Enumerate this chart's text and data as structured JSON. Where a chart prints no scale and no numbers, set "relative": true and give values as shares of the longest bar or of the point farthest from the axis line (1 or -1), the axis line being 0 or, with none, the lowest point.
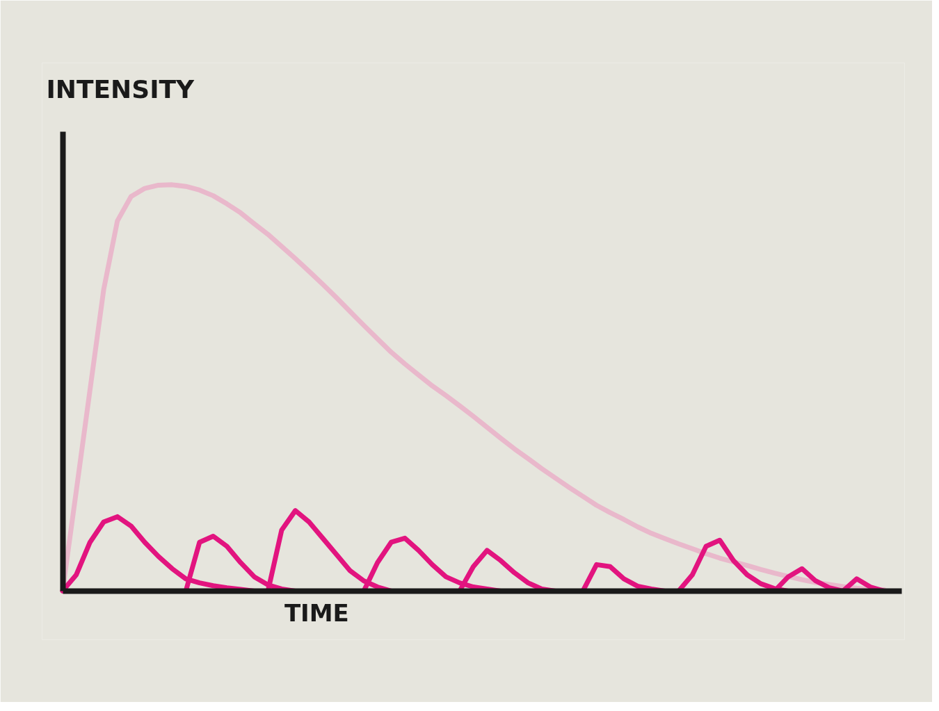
{
  "chart_data": {
    "type": "line",
    "relative": true,
    "grid": false,
    "xlabel": "TIME",
    "ylabel": "INTENSITY",
    "categories": [
      null,
      null,
      null,
      null,
      null,
      null,
      null,
      null,
      null,
      null,
      null,
      null,
      null,
      null,
      null,
      null,
      null,
      null,
      null,
      null,
      null,
      null,
      null,
      null,
      null,
      null,
      null,
      null,
      null,
      null,
      null,
      null,
      null,
      null,
      null,
      null,
      null,
      null,
      null,
      null,
      null,
      null,
      null,
      null,
      null,
      null,
      null,
      null,
      null,
      null,
      null,
      null,
      null,
      null,
      null,
      null,
      null,
      null,
      null,
      null,
      null
    ],
    "series": [
      {
        "color": "#e9b8cb",
        "values": [
          0,
          0.247,
          0.495,
          0.742,
          0.911,
          0.971,
          0.991,
          0.999,
          1.0,
          0.996,
          0.987,
          0.973,
          0.953,
          0.931,
          0.904,
          0.878,
          0.848,
          0.818,
          0.787,
          0.755,
          0.722,
          0.688,
          0.654,
          0.621,
          0.588,
          0.559,
          0.532,
          0.505,
          0.481,
          0.456,
          0.43,
          0.403,
          0.376,
          0.35,
          0.326,
          0.301,
          0.278,
          0.255,
          0.233,
          0.211,
          0.193,
          0.176,
          0.158,
          0.142,
          0.129,
          0.116,
          0.104,
          0.092,
          0.081,
          0.072,
          0.063,
          0.053,
          0.044,
          0.036,
          0.028,
          0.021,
          0.016,
          0.011,
          0.007,
          0.004,
          0.003
        ]
      },
      {
        "color": "#e2147f",
        "values": [
          0,
          0.04,
          0.12,
          0.17,
          0.183,
          0.16,
          0.12,
          0.085,
          0.055,
          0.03,
          0.02,
          0.013,
          0.008,
          0.004,
          0,
          null,
          null,
          null,
          null,
          null,
          null,
          null,
          null,
          null,
          null,
          null,
          null,
          null,
          null,
          null,
          null,
          null,
          null,
          null,
          null,
          null,
          null,
          null,
          null,
          null,
          null,
          null,
          null,
          null,
          null,
          null,
          null,
          null,
          null,
          null,
          null,
          null,
          null,
          null,
          null,
          null,
          null,
          null,
          null,
          null,
          null
        ]
      },
      {
        "color": "#e2147f",
        "values": [
          null,
          null,
          null,
          null,
          null,
          null,
          null,
          null,
          null,
          0,
          0.12,
          0.135,
          0.11,
          0.07,
          0.035,
          0.015,
          0.005,
          0,
          null,
          null,
          null,
          null,
          null,
          null,
          null,
          null,
          null,
          null,
          null,
          null,
          null,
          null,
          null,
          null,
          null,
          null,
          null,
          null,
          null,
          null,
          null,
          null,
          null,
          null,
          null,
          null,
          null,
          null,
          null,
          null,
          null,
          null,
          null,
          null,
          null,
          null,
          null,
          null,
          null,
          null,
          null
        ]
      },
      {
        "color": "#e2147f",
        "values": [
          null,
          null,
          null,
          null,
          null,
          null,
          null,
          null,
          null,
          null,
          null,
          null,
          null,
          null,
          null,
          0,
          0.15,
          0.198,
          0.17,
          0.13,
          0.09,
          0.05,
          0.025,
          0.01,
          0,
          null,
          null,
          null,
          null,
          null,
          null,
          null,
          null,
          null,
          null,
          null,
          null,
          null,
          null,
          null,
          null,
          null,
          null,
          null,
          null,
          null,
          null,
          null,
          null,
          null,
          null,
          null,
          null,
          null,
          null,
          null,
          null,
          null,
          null,
          null,
          null
        ]
      },
      {
        "color": "#e2147f",
        "values": [
          null,
          null,
          null,
          null,
          null,
          null,
          null,
          null,
          null,
          null,
          null,
          null,
          null,
          null,
          null,
          null,
          null,
          null,
          null,
          null,
          null,
          null,
          0,
          0.07,
          0.12,
          0.13,
          0.1,
          0.065,
          0.035,
          0.02,
          0.01,
          0.005,
          0,
          null,
          null,
          null,
          null,
          null,
          null,
          null,
          null,
          null,
          null,
          null,
          null,
          null,
          null,
          null,
          null,
          null,
          null,
          null,
          null,
          null,
          null,
          null,
          null,
          null,
          null,
          null,
          null
        ]
      },
      {
        "color": "#e2147f",
        "values": [
          null,
          null,
          null,
          null,
          null,
          null,
          null,
          null,
          null,
          null,
          null,
          null,
          null,
          null,
          null,
          null,
          null,
          null,
          null,
          null,
          null,
          null,
          null,
          null,
          null,
          null,
          null,
          null,
          null,
          0,
          0.06,
          0.1,
          0.075,
          0.045,
          0.02,
          0.005,
          0,
          null,
          null,
          null,
          null,
          null,
          null,
          null,
          null,
          null,
          null,
          null,
          null,
          null,
          null,
          null,
          null,
          null,
          null,
          null,
          null,
          null,
          null,
          null,
          null
        ]
      },
      {
        "color": "#e2147f",
        "values": [
          null,
          null,
          null,
          null,
          null,
          null,
          null,
          null,
          null,
          null,
          null,
          null,
          null,
          null,
          null,
          null,
          null,
          null,
          null,
          null,
          null,
          null,
          null,
          null,
          null,
          null,
          null,
          null,
          null,
          null,
          null,
          null,
          null,
          null,
          null,
          null,
          null,
          null,
          0,
          0.065,
          0.06,
          0.03,
          0.012,
          0.005,
          0,
          null,
          null,
          null,
          null,
          null,
          null,
          null,
          null,
          null,
          null,
          null,
          null,
          null,
          null,
          null,
          null
        ]
      },
      {
        "color": "#e2147f",
        "values": [
          null,
          null,
          null,
          null,
          null,
          null,
          null,
          null,
          null,
          null,
          null,
          null,
          null,
          null,
          null,
          null,
          null,
          null,
          null,
          null,
          null,
          null,
          null,
          null,
          null,
          null,
          null,
          null,
          null,
          null,
          null,
          null,
          null,
          null,
          null,
          null,
          null,
          null,
          null,
          null,
          null,
          null,
          null,
          null,
          null,
          0,
          0.04,
          0.11,
          0.125,
          0.075,
          0.04,
          0.018,
          0.006,
          0,
          null,
          null,
          null,
          null,
          null,
          null,
          null
        ]
      },
      {
        "color": "#e2147f",
        "values": [
          null,
          null,
          null,
          null,
          null,
          null,
          null,
          null,
          null,
          null,
          null,
          null,
          null,
          null,
          null,
          null,
          null,
          null,
          null,
          null,
          null,
          null,
          null,
          null,
          null,
          null,
          null,
          null,
          null,
          null,
          null,
          null,
          null,
          null,
          null,
          null,
          null,
          null,
          null,
          null,
          null,
          null,
          null,
          null,
          null,
          null,
          null,
          null,
          null,
          null,
          null,
          null,
          0,
          0.035,
          0.055,
          0.025,
          0.008,
          0,
          null,
          null,
          null
        ]
      },
      {
        "color": "#e2147f",
        "values": [
          null,
          null,
          null,
          null,
          null,
          null,
          null,
          null,
          null,
          null,
          null,
          null,
          null,
          null,
          null,
          null,
          null,
          null,
          null,
          null,
          null,
          null,
          null,
          null,
          null,
          null,
          null,
          null,
          null,
          null,
          null,
          null,
          null,
          null,
          null,
          null,
          null,
          null,
          null,
          null,
          null,
          null,
          null,
          null,
          null,
          null,
          null,
          null,
          null,
          null,
          null,
          null,
          null,
          null,
          null,
          null,
          null,
          0,
          0.03,
          0.01,
          0
        ]
      }
    ]
  }
}
